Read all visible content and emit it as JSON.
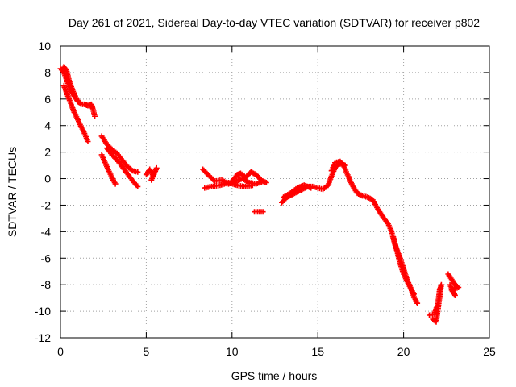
{
  "chart_data": {
    "type": "scatter",
    "title": "Day 261 of 2021, Sidereal Day-to-day VTEC variation (SDTVAR) for receiver p802",
    "xlabel": "GPS time / hours",
    "ylabel": "SDTVAR / TECUs",
    "xlim": [
      0,
      25
    ],
    "ylim": [
      -12,
      10
    ],
    "xticks": [
      "0",
      "5",
      "10",
      "15",
      "20",
      "25"
    ],
    "xtick_values": [
      0,
      5,
      10,
      15,
      20,
      25
    ],
    "yticks": [
      "10",
      "8",
      "6",
      "4",
      "2",
      "0",
      "-2",
      "-4",
      "-6",
      "-8",
      "-10",
      "-12"
    ],
    "ytick_values": [
      10,
      8,
      6,
      4,
      2,
      0,
      -2,
      -4,
      -6,
      -8,
      -10,
      -12
    ],
    "grid": true,
    "marker": "+",
    "series": [
      {
        "name": "p802",
        "color": "#ff0000",
        "segments": [
          [
            [
              0.0,
              8.3
            ],
            [
              0.2,
              8.0
            ],
            [
              0.4,
              7.3
            ],
            [
              0.6,
              6.6
            ],
            [
              0.8,
              6.2
            ],
            [
              1.0,
              5.9
            ],
            [
              1.2,
              5.6
            ],
            [
              1.4,
              5.6
            ],
            [
              1.6,
              5.5
            ],
            [
              1.8,
              5.6
            ],
            [
              1.9,
              5.2
            ],
            [
              2.0,
              4.7
            ]
          ],
          [
            [
              0.1,
              8.2
            ],
            [
              0.2,
              8.4
            ],
            [
              0.35,
              8.2
            ],
            [
              0.5,
              7.4
            ],
            [
              0.7,
              6.7
            ],
            [
              0.9,
              6.1
            ],
            [
              1.0,
              5.8
            ]
          ],
          [
            [
              0.2,
              7.0
            ],
            [
              0.5,
              6.0
            ],
            [
              0.8,
              5.0
            ],
            [
              1.1,
              4.2
            ],
            [
              1.4,
              3.4
            ],
            [
              1.6,
              2.8
            ]
          ],
          [
            [
              2.4,
              3.2
            ],
            [
              2.7,
              2.6
            ],
            [
              3.0,
              2.2
            ],
            [
              3.3,
              1.9
            ],
            [
              3.6,
              1.4
            ],
            [
              3.9,
              0.9
            ],
            [
              4.2,
              0.6
            ],
            [
              4.5,
              0.5
            ]
          ],
          [
            [
              2.7,
              2.3
            ],
            [
              3.0,
              1.8
            ],
            [
              3.3,
              1.4
            ],
            [
              3.6,
              0.9
            ],
            [
              4.0,
              0.2
            ],
            [
              4.3,
              -0.3
            ],
            [
              4.5,
              -0.6
            ]
          ],
          [
            [
              2.4,
              1.8
            ],
            [
              2.7,
              0.9
            ],
            [
              3.0,
              0.1
            ],
            [
              3.2,
              -0.4
            ]
          ],
          [
            [
              5.0,
              0.3
            ],
            [
              5.2,
              0.7
            ],
            [
              5.4,
              0.2
            ],
            [
              5.6,
              0.8
            ],
            [
              5.3,
              -0.1
            ]
          ],
          [
            [
              8.3,
              0.7
            ],
            [
              8.6,
              0.3
            ],
            [
              9.0,
              -0.2
            ],
            [
              9.4,
              -0.1
            ],
            [
              9.8,
              -0.4
            ],
            [
              10.2,
              -0.2
            ],
            [
              10.6,
              0.0
            ],
            [
              11.0,
              -0.3
            ],
            [
              11.4,
              -0.4
            ],
            [
              11.8,
              -0.2
            ],
            [
              12.0,
              -0.3
            ]
          ],
          [
            [
              8.4,
              -0.7
            ],
            [
              8.8,
              -0.6
            ],
            [
              9.3,
              -0.5
            ],
            [
              9.8,
              -0.3
            ],
            [
              10.3,
              -0.5
            ],
            [
              10.7,
              -0.6
            ],
            [
              11.2,
              -0.5
            ]
          ],
          [
            [
              10.0,
              -0.2
            ],
            [
              10.3,
              0.3
            ],
            [
              10.5,
              0.4
            ],
            [
              10.8,
              0.1
            ],
            [
              11.1,
              0.5
            ],
            [
              11.4,
              0.3
            ],
            [
              11.7,
              -0.1
            ]
          ],
          [
            [
              11.3,
              -2.5
            ],
            [
              11.6,
              -2.5
            ],
            [
              11.8,
              -2.5
            ]
          ],
          [
            [
              12.9,
              -1.8
            ],
            [
              13.2,
              -1.4
            ],
            [
              13.5,
              -1.2
            ],
            [
              13.8,
              -1.0
            ],
            [
              14.1,
              -0.8
            ],
            [
              14.4,
              -0.6
            ],
            [
              14.7,
              -0.6
            ],
            [
              15.0,
              -0.7
            ],
            [
              15.3,
              -0.8
            ],
            [
              15.6,
              -0.5
            ],
            [
              15.8,
              0.2
            ],
            [
              16.0,
              0.8
            ],
            [
              16.2,
              1.1
            ],
            [
              16.4,
              1.1
            ],
            [
              16.6,
              1.0
            ]
          ],
          [
            [
              13.0,
              -1.4
            ],
            [
              13.4,
              -1.1
            ],
            [
              13.8,
              -0.7
            ],
            [
              14.2,
              -0.5
            ],
            [
              14.6,
              -0.7
            ]
          ],
          [
            [
              15.8,
              0.6
            ],
            [
              16.0,
              1.2
            ],
            [
              16.3,
              1.3
            ],
            [
              16.5,
              1.0
            ],
            [
              16.7,
              0.4
            ],
            [
              16.9,
              -0.2
            ],
            [
              17.1,
              -0.7
            ],
            [
              17.3,
              -1.1
            ],
            [
              17.6,
              -1.3
            ],
            [
              17.9,
              -1.4
            ],
            [
              18.2,
              -1.6
            ],
            [
              18.5,
              -2.3
            ],
            [
              18.8,
              -2.9
            ],
            [
              19.1,
              -3.4
            ],
            [
              19.3,
              -4.0
            ],
            [
              19.5,
              -5.0
            ],
            [
              19.8,
              -6.0
            ],
            [
              20.0,
              -6.8
            ],
            [
              20.2,
              -7.6
            ],
            [
              20.4,
              -8.2
            ],
            [
              20.6,
              -8.9
            ],
            [
              20.8,
              -9.4
            ]
          ],
          [
            [
              19.4,
              -4.4
            ],
            [
              19.6,
              -5.4
            ],
            [
              19.8,
              -6.4
            ],
            [
              20.0,
              -7.2
            ],
            [
              20.3,
              -8.0
            ],
            [
              20.6,
              -8.7
            ]
          ],
          [
            [
              21.5,
              -10.3
            ],
            [
              21.8,
              -10.2
            ],
            [
              22.0,
              -9.4
            ],
            [
              22.1,
              -8.4
            ],
            [
              22.2,
              -8.0
            ],
            [
              21.9,
              -10.8
            ],
            [
              21.7,
              -10.6
            ]
          ],
          [
            [
              22.6,
              -7.2
            ],
            [
              22.8,
              -7.6
            ],
            [
              23.0,
              -8.0
            ],
            [
              23.2,
              -8.2
            ],
            [
              22.8,
              -8.4
            ],
            [
              23.0,
              -8.8
            ],
            [
              22.7,
              -8.0
            ]
          ]
        ]
      }
    ]
  }
}
